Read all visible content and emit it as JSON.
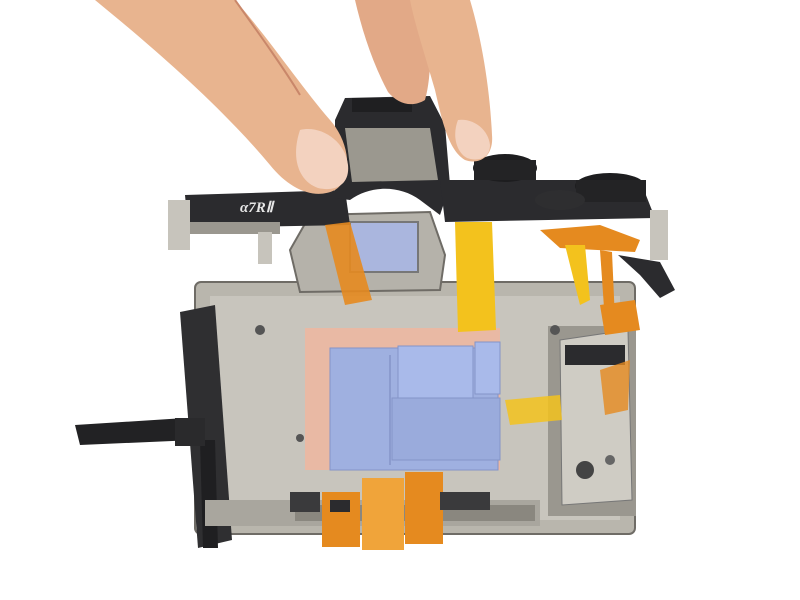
{
  "photo": {
    "model_badge": "α7RⅡ",
    "colors": {
      "background": "#ffffff",
      "skin": "#e8b48f",
      "skin_shadow": "#c9876a",
      "chassis_metal": "#b9b6ad",
      "chassis_dark": "#3a3a3c",
      "top_plate": "#2b2b2e",
      "thermal_pad": "#9fb0e0",
      "copper_foil": "#e9b9a4",
      "flex_cable_orange": "#e58a1f",
      "flex_cable_yellow": "#f3c21d",
      "badge_red": "#d9322b"
    }
  }
}
